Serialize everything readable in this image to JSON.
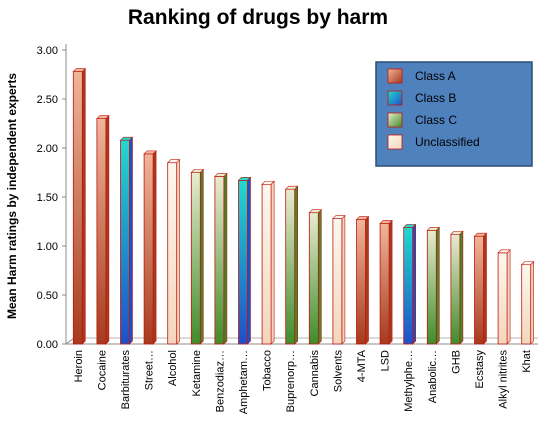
{
  "chart_data": {
    "type": "bar",
    "title": "Ranking of drugs by harm",
    "xlabel": "",
    "ylabel": "Mean Harm ratings by independent experts",
    "ylim": [
      0,
      3
    ],
    "yticks": [
      "0.00",
      "0.50",
      "1.00",
      "1.50",
      "2.00",
      "2.50",
      "3.00"
    ],
    "grid": false,
    "legend_position": "top-right",
    "categories": [
      "Heroin",
      "Cocaine",
      "Barbiturates",
      "Street…",
      "Alcohol",
      "Ketamine",
      "Benzodiaz…",
      "Amphetam…",
      "Tobacco",
      "Buprenorp…",
      "Cannabis",
      "Solvents",
      "4-MTA",
      "LSD",
      "Methylphe…",
      "Anabolic…",
      "GHB",
      "Ecstasy",
      "Alkyl nitrites",
      "Khat"
    ],
    "values": [
      2.78,
      2.3,
      2.08,
      1.94,
      1.85,
      1.75,
      1.71,
      1.67,
      1.63,
      1.58,
      1.34,
      1.28,
      1.27,
      1.23,
      1.19,
      1.16,
      1.12,
      1.1,
      0.93,
      0.81
    ],
    "classes": [
      "Class A",
      "Class A",
      "Class B",
      "Class A",
      "Unclassified",
      "Class C",
      "Class C",
      "Class B",
      "Unclassified",
      "Class C",
      "Class C",
      "Unclassified",
      "Class A",
      "Class A",
      "Class B",
      "Class C",
      "Class C",
      "Class A",
      "Unclassified",
      "Unclassified"
    ],
    "legend": [
      {
        "name": "Class A",
        "color": "#a63a1c"
      },
      {
        "name": "Class B",
        "color": "#1f66c8"
      },
      {
        "name": "Class C",
        "color": "#3f8c2a"
      },
      {
        "name": "Unclassified",
        "color": "#f6e6cc"
      }
    ],
    "class_colors": {
      "Class A": {
        "dark": "#a63a1c",
        "light": "#f0b59a"
      },
      "Class B": {
        "dark": "#1f4fc8",
        "light": "#22d8cf"
      },
      "Class C": {
        "dark": "#3f8c2a",
        "light": "#e9ebcf"
      },
      "Unclassified": {
        "dark": "#f3d6bc",
        "light": "#fdf8ee"
      }
    },
    "legend_box_color": "#4f81bd",
    "outline_color": "#c0160f"
  }
}
